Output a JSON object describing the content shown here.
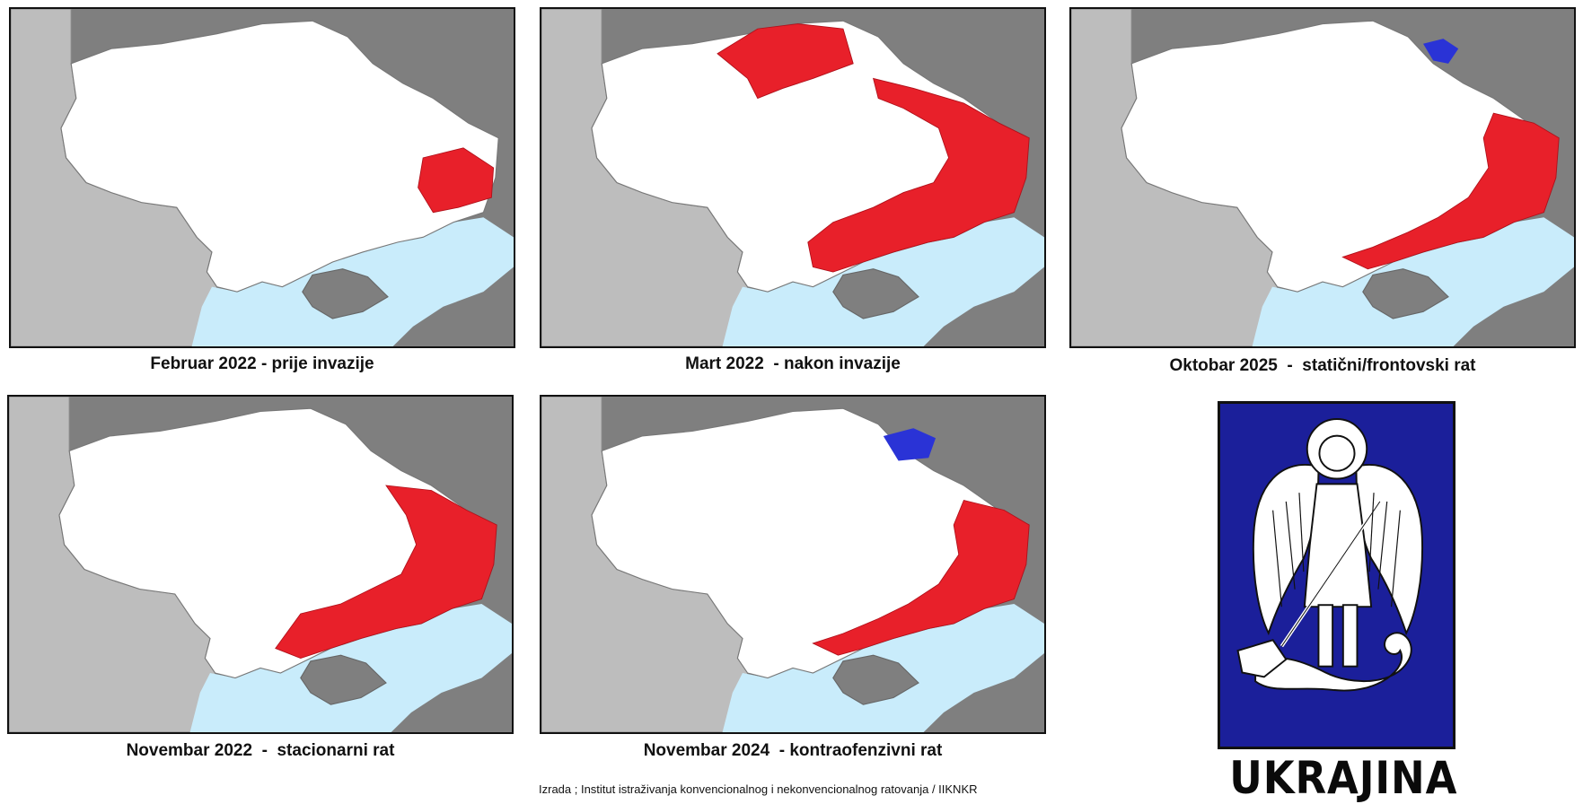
{
  "panels": [
    {
      "caption": "Februar 2022 - prije invazije",
      "occupied": "donbas-small",
      "blue": ""
    },
    {
      "caption": "Mart 2022  - nakon invazije",
      "occupied": "north-east-south",
      "blue": ""
    },
    {
      "caption": "Oktobar 2025  -  statični/frontovski rat",
      "occupied": "east-south",
      "blue": "kursk-small"
    },
    {
      "caption": "Novembar 2022  -  stacionarni rat",
      "occupied": "east-south-wide",
      "blue": ""
    },
    {
      "caption": "Novembar 2024  - kontraofenzivni rat",
      "occupied": "east-south",
      "blue": "kursk-large"
    }
  ],
  "credit": "Izrada ; Institut istraživanja konvencionalnog i nekonvencionalnog ratovanja / IIKNKR",
  "country": "UKRAJINA",
  "colors": {
    "occupied": "#e8202a",
    "ukraine_controlled_russia": "#2a33d6",
    "sea": "#c9ecfb",
    "neighbours_light": "#bdbdbd",
    "neighbours_dark": "#7f7f7f",
    "emblem_background": "#1b1f9a"
  },
  "emblem": {
    "depicts": "archangel-michael-icon"
  }
}
